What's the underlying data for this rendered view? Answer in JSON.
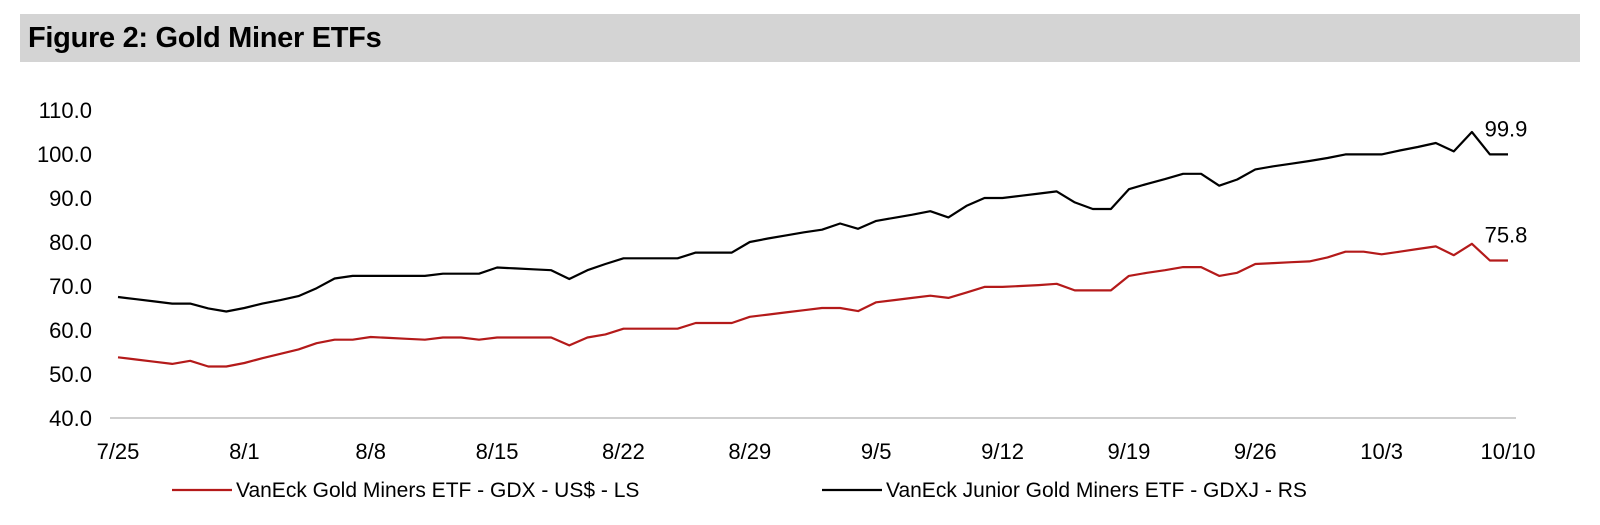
{
  "title": "Figure 2: Gold Miner ETFs",
  "chart_data": {
    "type": "line",
    "title": "Figure 2: Gold Miner ETFs",
    "ylim": [
      40,
      110
    ],
    "yticks": [
      "40.0",
      "50.0",
      "60.0",
      "70.0",
      "80.0",
      "90.0",
      "100.0",
      "110.0"
    ],
    "xticks": [
      "7/25",
      "8/1",
      "8/8",
      "8/15",
      "8/22",
      "8/29",
      "9/5",
      "9/12",
      "9/19",
      "9/26",
      "10/3",
      "10/10"
    ],
    "x": [
      "7/25",
      "7/26",
      "7/27",
      "7/28",
      "7/29",
      "7/30",
      "7/31",
      "8/1",
      "8/2",
      "8/3",
      "8/4",
      "8/5",
      "8/6",
      "8/7",
      "8/8",
      "8/9",
      "8/10",
      "8/11",
      "8/12",
      "8/13",
      "8/14",
      "8/15",
      "8/16",
      "8/17",
      "8/18",
      "8/19",
      "8/20",
      "8/21",
      "8/22",
      "8/23",
      "8/24",
      "8/25",
      "8/26",
      "8/27",
      "8/28",
      "8/29",
      "8/30",
      "8/31",
      "9/1",
      "9/2",
      "9/3",
      "9/4",
      "9/5",
      "9/6",
      "9/7",
      "9/8",
      "9/9",
      "9/10",
      "9/11",
      "9/12",
      "9/13",
      "9/14",
      "9/15",
      "9/16",
      "9/17",
      "9/18",
      "9/19",
      "9/20",
      "9/21",
      "9/22",
      "9/23",
      "9/24",
      "9/25",
      "9/26",
      "9/27",
      "9/28",
      "9/29",
      "9/30",
      "10/1",
      "10/2",
      "10/3",
      "10/4",
      "10/5",
      "10/6",
      "10/7",
      "10/8",
      "10/9",
      "10/10"
    ],
    "grid": false,
    "legend_position": "bottom",
    "series": [
      {
        "name": "VanEck Gold Miners ETF   - GDX  - US$ - LS",
        "color": "#b41a1a",
        "end_label": "75.8",
        "values": [
          53.8,
          53.3,
          52.8,
          52.3,
          53.0,
          51.7,
          51.7,
          52.5,
          53.6,
          54.6,
          55.6,
          57.0,
          57.8,
          57.8,
          58.4,
          58.2,
          58.0,
          57.8,
          58.3,
          58.3,
          57.8,
          58.3,
          58.3,
          58.3,
          58.3,
          56.5,
          58.3,
          59.0,
          60.3,
          60.3,
          60.3,
          60.3,
          61.6,
          61.6,
          61.6,
          63.0,
          63.5,
          64.0,
          64.5,
          65.0,
          65.0,
          64.3,
          66.3,
          66.8,
          67.3,
          67.8,
          67.3,
          68.5,
          69.8,
          69.8,
          70.0,
          70.2,
          70.5,
          69.0,
          69.0,
          69.0,
          72.3,
          73.0,
          73.6,
          74.3,
          74.3,
          72.3,
          73.0,
          75.0,
          75.2,
          75.4,
          75.6,
          76.5,
          77.8,
          77.8,
          77.2,
          77.8,
          78.4,
          79.0,
          77.0,
          79.6,
          75.8,
          75.8
        ]
      },
      {
        "name": "VanEck Junior Gold Miners ETF - GDXJ - RS",
        "color": "#000000",
        "end_label": "99.9",
        "values": [
          67.5,
          67.0,
          66.5,
          66.0,
          66.0,
          64.9,
          64.2,
          65.0,
          66.0,
          66.8,
          67.7,
          69.5,
          71.7,
          72.3,
          72.3,
          72.3,
          72.3,
          72.3,
          72.8,
          72.8,
          72.8,
          74.2,
          74.0,
          73.8,
          73.6,
          71.6,
          73.6,
          75.0,
          76.3,
          76.3,
          76.3,
          76.3,
          77.6,
          77.6,
          77.6,
          80.0,
          80.8,
          81.5,
          82.2,
          82.8,
          84.2,
          83.0,
          84.8,
          85.5,
          86.2,
          87.0,
          85.6,
          88.2,
          90.0,
          90.0,
          90.5,
          91.0,
          91.5,
          89.0,
          87.5,
          87.5,
          92.0,
          93.2,
          94.3,
          95.5,
          95.5,
          92.8,
          94.2,
          96.5,
          97.2,
          97.8,
          98.4,
          99.1,
          99.9,
          99.9,
          99.9,
          100.8,
          101.6,
          102.5,
          100.6,
          105.0,
          99.9,
          99.9
        ]
      }
    ]
  }
}
